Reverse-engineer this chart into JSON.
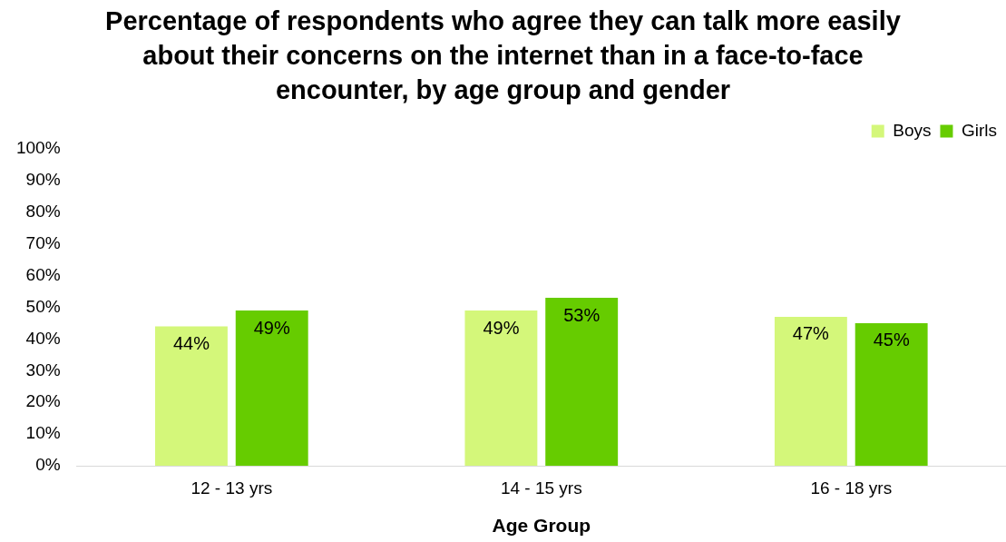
{
  "chart_data": {
    "type": "bar",
    "title": "Percentage of respondents who agree they can talk more easily about their concerns on the internet than in a face-to-face encounter, by age group and gender",
    "xlabel": "Age Group",
    "categories": [
      "12 - 13 yrs",
      "14 - 15 yrs",
      "16 - 18 yrs"
    ],
    "series": [
      {
        "name": "Boys",
        "color": "#d4f77a",
        "values": [
          44,
          49,
          47
        ],
        "value_labels": [
          "44%",
          "49%",
          "47%"
        ]
      },
      {
        "name": "Girls",
        "color": "#66cc00",
        "values": [
          49,
          53,
          45
        ],
        "value_labels": [
          "49%",
          "53%",
          "45%"
        ]
      }
    ],
    "ylim": [
      0,
      100
    ],
    "yticks": [
      {
        "value": 0,
        "label": "0%"
      },
      {
        "value": 10,
        "label": "10%"
      },
      {
        "value": 20,
        "label": "20%"
      },
      {
        "value": 30,
        "label": "30%"
      },
      {
        "value": 40,
        "label": "40%"
      },
      {
        "value": 50,
        "label": "50%"
      },
      {
        "value": 60,
        "label": "60%"
      },
      {
        "value": 70,
        "label": "70%"
      },
      {
        "value": 80,
        "label": "80%"
      },
      {
        "value": 90,
        "label": "90%"
      },
      {
        "value": 100,
        "label": "100%"
      }
    ],
    "grid": false,
    "legend": "top right"
  }
}
